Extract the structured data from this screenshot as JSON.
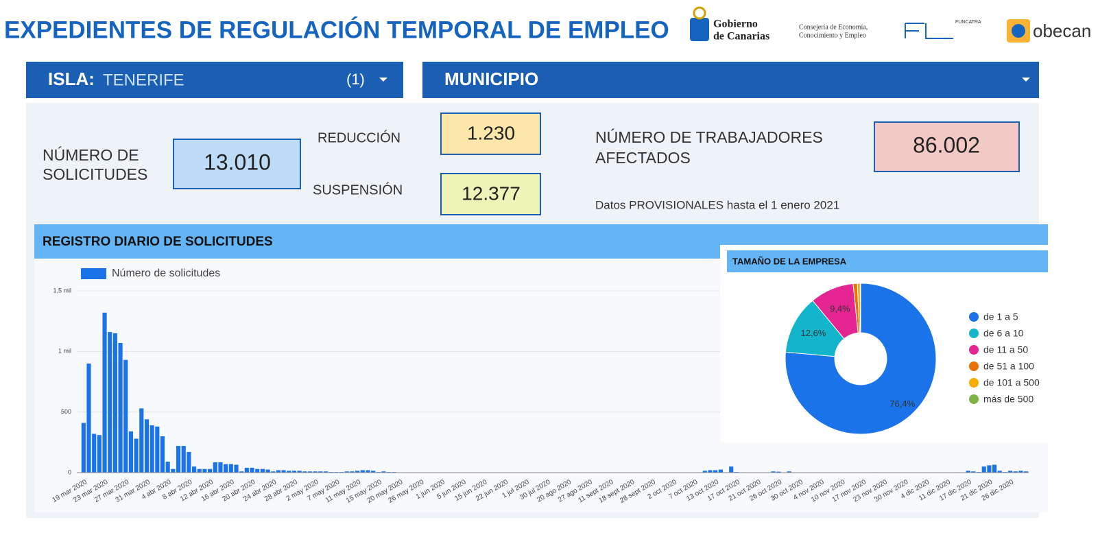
{
  "header": {
    "title": "EXPEDIENTES DE REGULACIÓN TEMPORAL DE EMPLEO",
    "logos": [
      "Gobierno",
      "de Canarias",
      "Consejería de Economía,",
      "Conocimiento y Empleo",
      "FUNCATRA",
      "obecan"
    ]
  },
  "filters": {
    "isla_label": "ISLA:",
    "isla_value": "TENERIFE",
    "isla_count": "(1)",
    "municipio": "MUNICIPIO"
  },
  "kpis": {
    "solicitudes_label": [
      "NÚMERO DE",
      "SOLICITUDES"
    ],
    "solicitudes": "13.010",
    "reduccion_label": "REDUCCIÓN",
    "reduccion": "1.230",
    "suspension_label": "SUSPENSIÓN",
    "suspension": "12.377",
    "trabajadores_label": [
      "NÚMERO DE TRABAJADORES",
      "AFECTADOS"
    ],
    "trabajadores": "86.002",
    "note": "Datos PROVISIONALES hasta el 1 enero 2021"
  },
  "chart_data": [
    {
      "type": "bar",
      "title": "REGISTRO DIARIO DE SOLICITUDES",
      "color": "#1a73e8",
      "grid": true,
      "series": [
        {
          "name": "Número de solicitudes",
          "color": "#1a73e8",
          "values": [
            410,
            900,
            320,
            310,
            1320,
            1160,
            1150,
            1070,
            930,
            340,
            280,
            530,
            440,
            390,
            380,
            300,
            90,
            30,
            220,
            220,
            170,
            50,
            30,
            30,
            30,
            85,
            85,
            70,
            70,
            65,
            10,
            40,
            40,
            30,
            30,
            25,
            10,
            20,
            20,
            15,
            15,
            15,
            10,
            10,
            10,
            10,
            10,
            5,
            5,
            5,
            10,
            10,
            15,
            20,
            20,
            15,
            5,
            10,
            5,
            5,
            0,
            2,
            2,
            2,
            1,
            0,
            1,
            0,
            0,
            1,
            0,
            0,
            1,
            0,
            0,
            1,
            0,
            0,
            1,
            0,
            0,
            1,
            0,
            0,
            0,
            0,
            1,
            0,
            0,
            0,
            0,
            1,
            0,
            1,
            0,
            0,
            0,
            0,
            1,
            0,
            0,
            0,
            0,
            1,
            0,
            1,
            0,
            0,
            1,
            0,
            0,
            2,
            1,
            0,
            2,
            1,
            2,
            3,
            15,
            20,
            20,
            25,
            3,
            50,
            5,
            3,
            2,
            1,
            2,
            1,
            3,
            10,
            8,
            2,
            10,
            2,
            2,
            1,
            2,
            1,
            1,
            2,
            1,
            1,
            2,
            1,
            1,
            2,
            1,
            1,
            3,
            1,
            1,
            2,
            1,
            1,
            1,
            2,
            1,
            2,
            1,
            1,
            2,
            1,
            2,
            1,
            3,
            2,
            15,
            10,
            5,
            50,
            60,
            65,
            15,
            5,
            15,
            10,
            15,
            10
          ]
        }
      ],
      "categories": [
        "19 mar 2020",
        null,
        null,
        null,
        "23 mar 2020",
        null,
        null,
        null,
        "27 mar 2020",
        null,
        null,
        null,
        "31 mar 2020",
        null,
        null,
        null,
        "4 abr 2020",
        null,
        null,
        null,
        "8 abr 2020",
        null,
        null,
        null,
        "12 abr 2020",
        null,
        null,
        null,
        "16 abr 2020",
        null,
        null,
        null,
        "20 abr 2020",
        null,
        null,
        null,
        "24 abr 2020",
        null,
        null,
        null,
        "28 abr 2020",
        null,
        null,
        null,
        "2 may 2020",
        null,
        null,
        null,
        "7 may 2020",
        null,
        null,
        null,
        "11 may 2020",
        null,
        null,
        null,
        "15 may 2020",
        null,
        null,
        null,
        "20 may 2020",
        null,
        null,
        null,
        "26 may 2020",
        null,
        null,
        null,
        "1 jun 2020",
        null,
        null,
        null,
        "5 jun 2020",
        null,
        null,
        null,
        "15 jun 2020",
        null,
        null,
        null,
        "22 jun 2020",
        null,
        null,
        null,
        "1 jul 2020",
        null,
        null,
        null,
        "30 jul 2020",
        null,
        null,
        null,
        "20 ago 2020",
        null,
        null,
        null,
        "27 ago 2020",
        null,
        null,
        null,
        "11 sept 2020",
        null,
        null,
        null,
        "18 sept 2020",
        null,
        null,
        null,
        "28 sept 2020",
        null,
        null,
        null,
        "2 oct 2020",
        null,
        null,
        null,
        "7 oct 2020",
        null,
        null,
        null,
        "13 oct 2020",
        null,
        null,
        null,
        "17 oct 2020",
        null,
        null,
        null,
        "21 oct 2020",
        null,
        null,
        null,
        "26 oct 2020",
        null,
        null,
        null,
        "30 oct 2020",
        null,
        null,
        null,
        "4 nov 2020",
        null,
        null,
        null,
        "10 nov 2020",
        null,
        null,
        null,
        "17 nov 2020",
        null,
        null,
        null,
        "23 nov 2020",
        null,
        null,
        null,
        "30 nov 2020",
        null,
        null,
        null,
        "4 dic 2020",
        null,
        null,
        null,
        "11 dic 2020",
        null,
        null,
        null,
        "17 dic 2020",
        null,
        null,
        null,
        "21 dic 2020",
        null,
        null,
        null,
        "26 dic 2020",
        null,
        null,
        null
      ],
      "ylim": [
        0,
        1500
      ],
      "yticks": [
        0,
        500,
        {
          "value": 1000,
          "label": "1 mil"
        },
        {
          "value": 1500,
          "label": "1,5 mil"
        }
      ],
      "legend": "top-left"
    },
    {
      "type": "pie",
      "title": "TAMAÑO DE LA EMPRESA",
      "donut": true,
      "legend": "right",
      "categories": [
        "de 1 a 5",
        "de 6 a 10",
        "de 11 a 50",
        "de 51 a 100",
        "de 101 a 500",
        "más de 500"
      ],
      "values": [
        76.4,
        12.6,
        9.4,
        0.9,
        0.6,
        0.1
      ],
      "value_labels": [
        "76,4%",
        "12,6%",
        "9,4%",
        null,
        null,
        null
      ],
      "colors": [
        "#1a73e8",
        "#12b5cb",
        "#e52592",
        "#e8710a",
        "#f9ab00",
        "#7cb342"
      ]
    }
  ]
}
